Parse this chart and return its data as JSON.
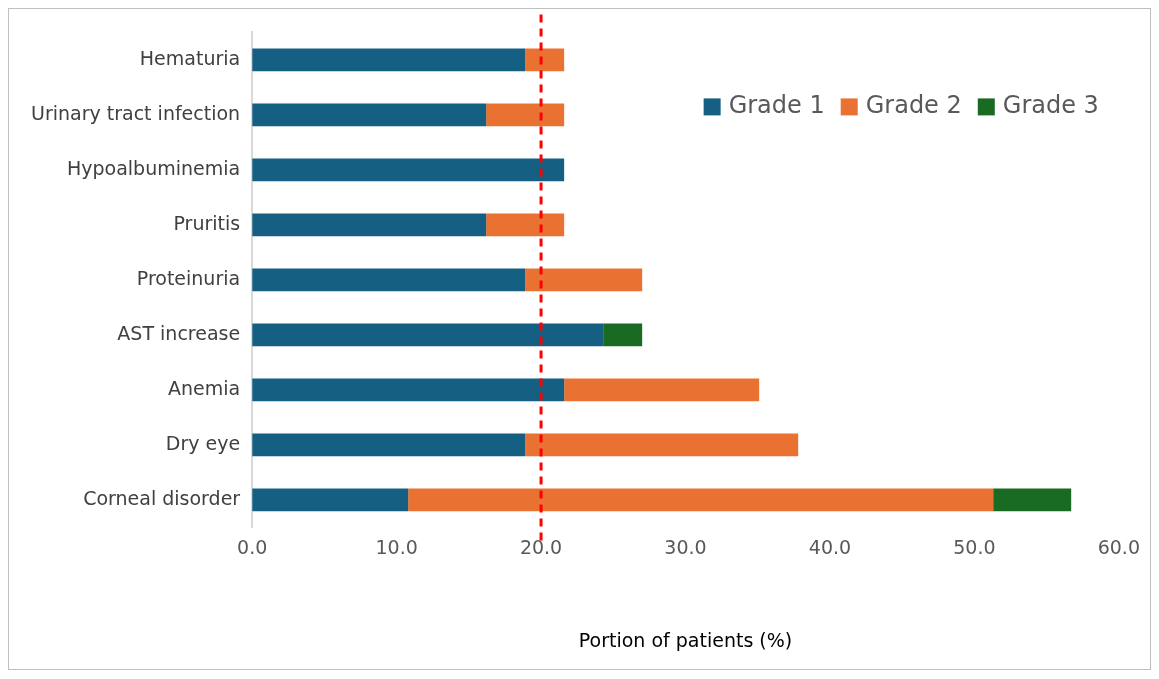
{
  "chart_data": {
    "type": "bar",
    "orientation": "horizontal",
    "stacked": true,
    "xlabel": "Portion of patients (%)",
    "categories": [
      "Hematuria",
      "Urinary tract infection",
      "Hypoalbuminemia",
      "Pruritis",
      "Proteinuria",
      "AST increase",
      "Anemia",
      "Dry eye",
      "Corneal disorder"
    ],
    "series": [
      {
        "name": "Grade 1",
        "color": "#156082",
        "values": [
          18.9,
          16.2,
          21.6,
          16.2,
          18.9,
          24.3,
          21.6,
          18.9,
          10.8
        ]
      },
      {
        "name": "Grade 2",
        "color": "#e97132",
        "values": [
          2.7,
          5.4,
          null,
          5.4,
          8.1,
          null,
          13.5,
          18.9,
          40.5
        ]
      },
      {
        "name": "Grade 3",
        "color": "#196b24",
        "values": [
          null,
          null,
          null,
          null,
          null,
          2.7,
          null,
          null,
          5.4
        ]
      }
    ],
    "xlim": [
      0,
      60
    ],
    "xticks": [
      {
        "value": 0,
        "label": "0.0"
      },
      {
        "value": 10,
        "label": "10.0"
      },
      {
        "value": 20,
        "label": "20.0"
      },
      {
        "value": 30,
        "label": "30.0"
      },
      {
        "value": 40,
        "label": "40.0"
      },
      {
        "value": 50,
        "label": "50.0"
      },
      {
        "value": 60,
        "label": "60.0"
      }
    ],
    "ref_lines": [
      {
        "axis": "x",
        "value": 20,
        "color": "#ff0000",
        "line_style": "dashed"
      }
    ],
    "grid": false,
    "legend": "top right"
  }
}
